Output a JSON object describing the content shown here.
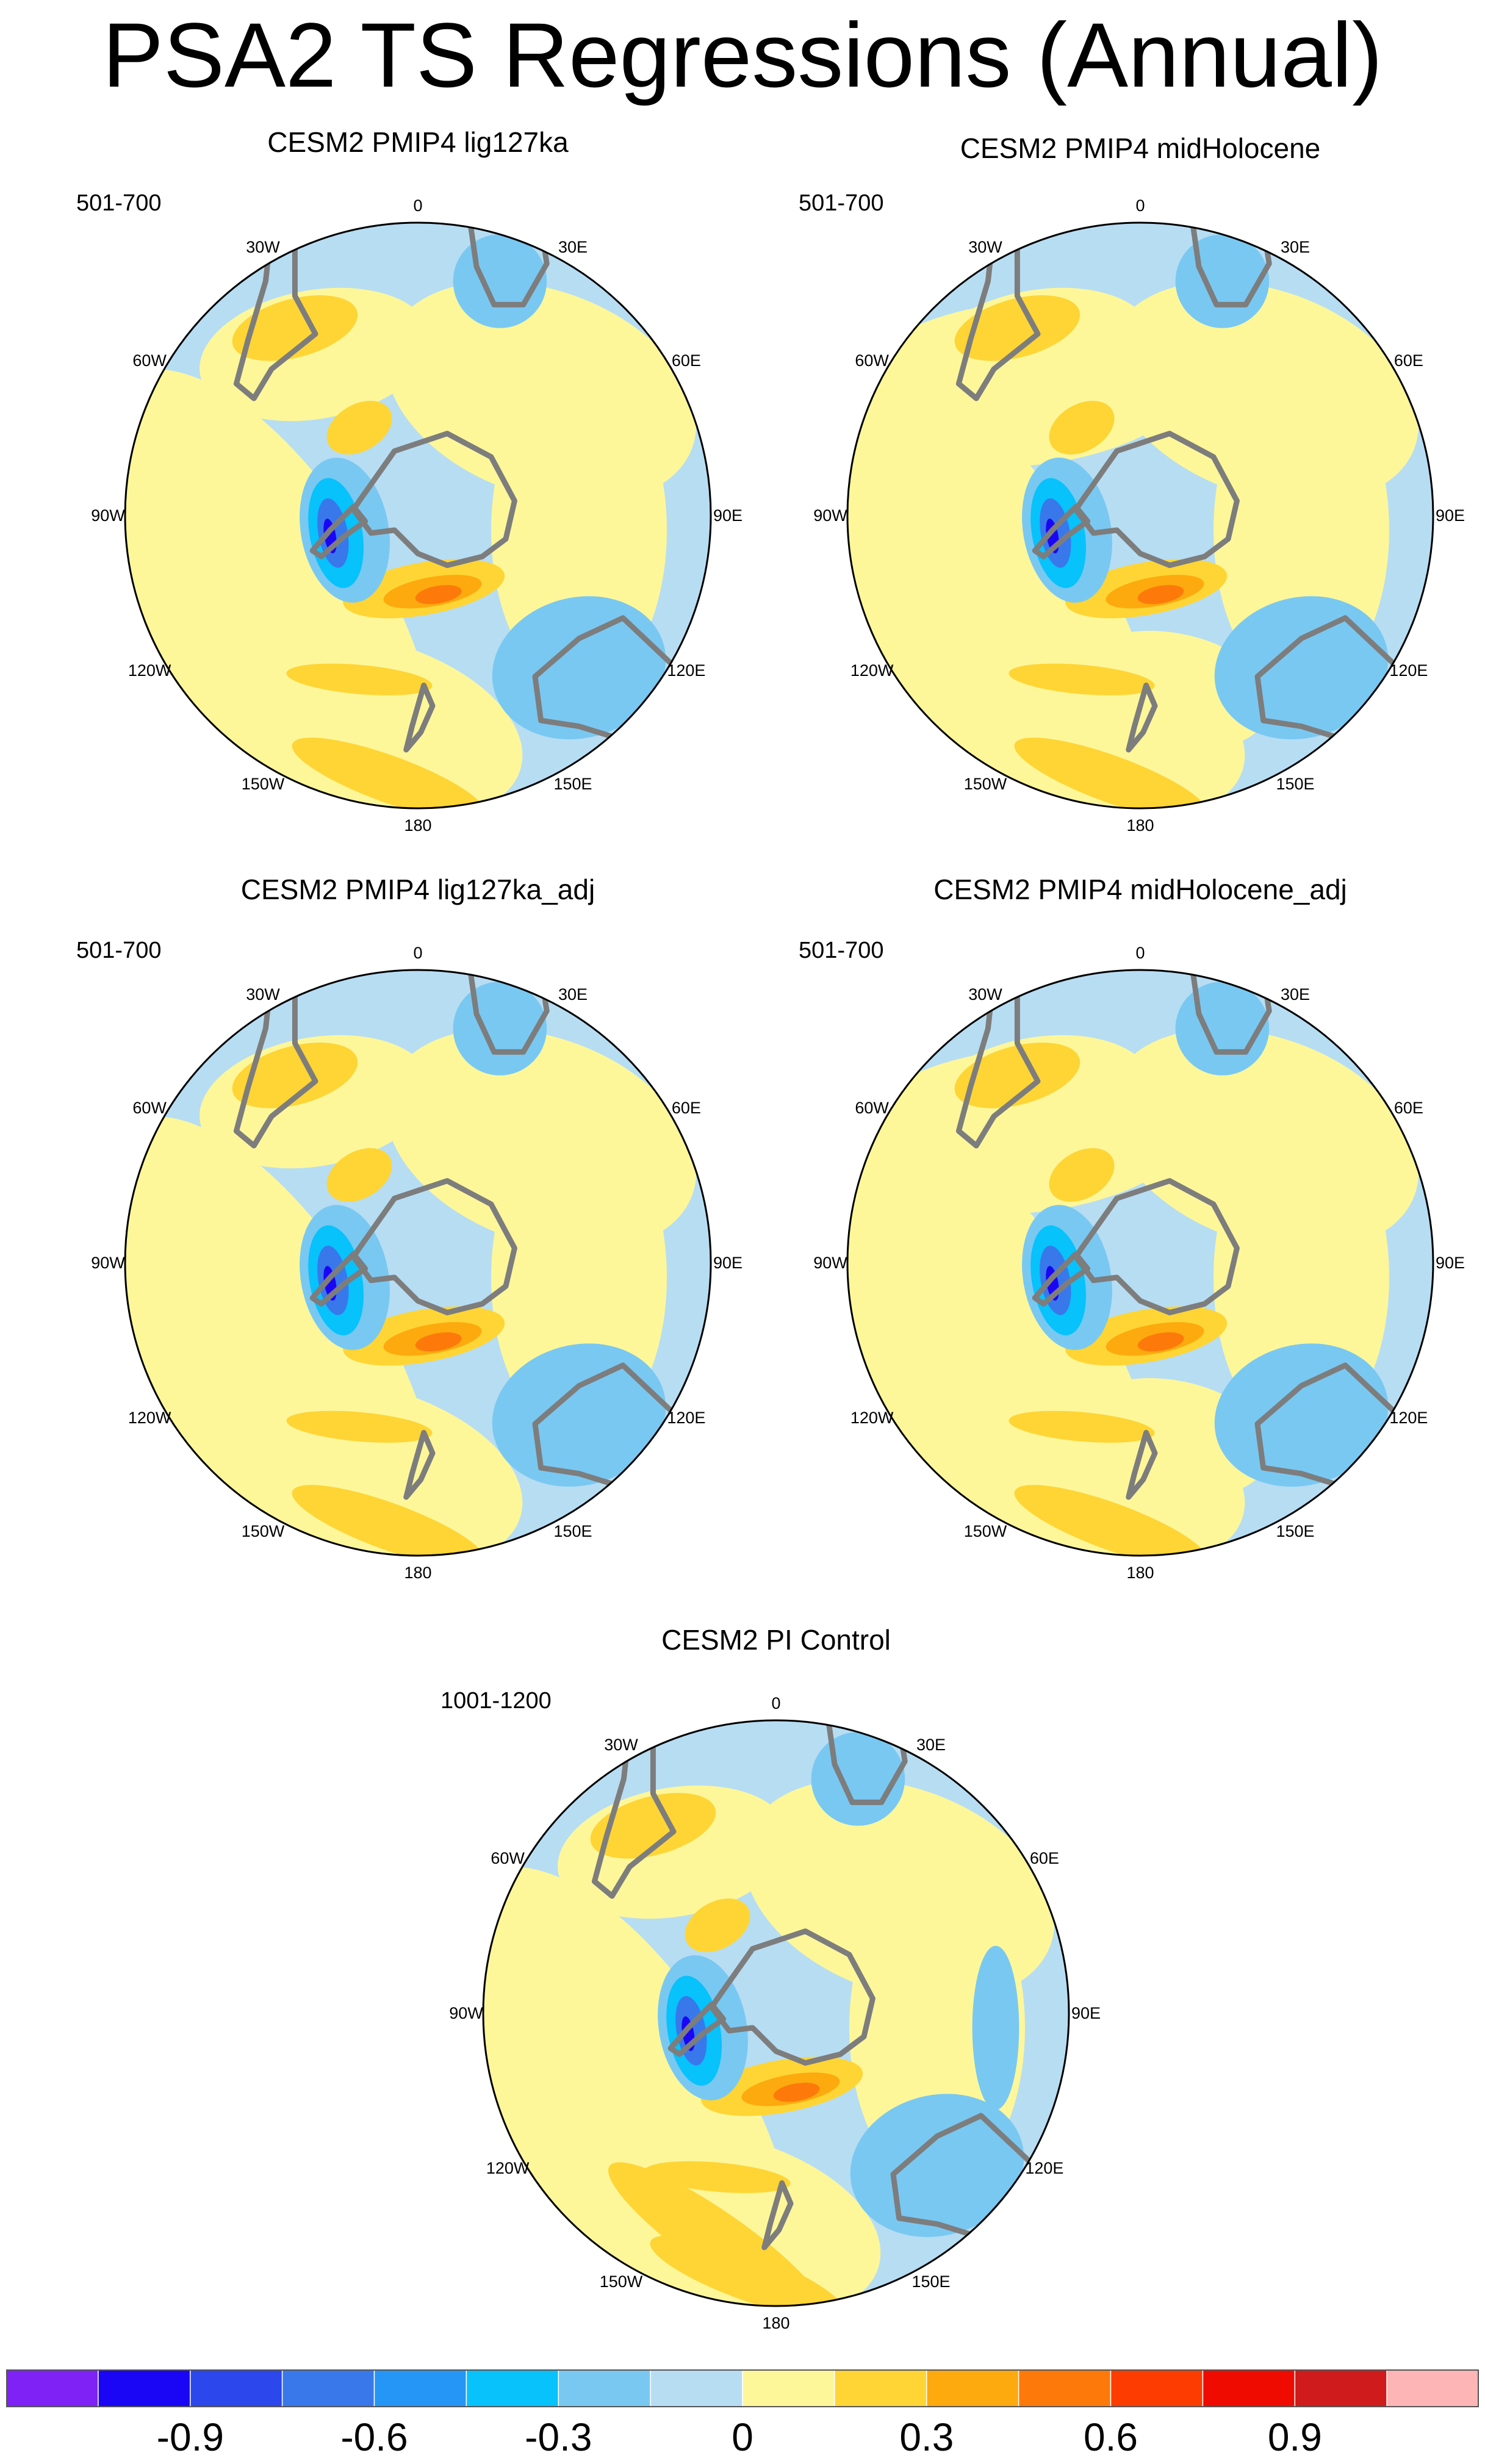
{
  "figure": {
    "title": "PSA2 TS Regressions (Annual)"
  },
  "panels": [
    {
      "id": "lig127ka",
      "title": "CESM2 PMIP4 lig127ka",
      "period": "501-700",
      "variant": "a"
    },
    {
      "id": "midHolocene",
      "title": "CESM2 PMIP4 midHolocene",
      "period": "501-700",
      "variant": "b"
    },
    {
      "id": "lig127ka_adj",
      "title": "CESM2 PMIP4 lig127ka_adj",
      "period": "501-700",
      "variant": "a"
    },
    {
      "id": "midHolocene_adj",
      "title": "CESM2 PMIP4 midHolocene_adj",
      "period": "501-700",
      "variant": "b"
    },
    {
      "id": "picontrol",
      "title": "CESM2 PI Control",
      "period": "1001-1200",
      "variant": "c"
    }
  ],
  "longitude_labels": [
    "0",
    "30E",
    "60E",
    "90E",
    "120E",
    "150E",
    "180",
    "150W",
    "120W",
    "90W",
    "60W",
    "30W"
  ],
  "colors": {
    "coastline": "#7d7d7d",
    "land_void": "#ffffff",
    "background_ocean": "#b7ddf3"
  },
  "colorbar": {
    "colors": [
      "#7f22f5",
      "#1a06f5",
      "#2c47eb",
      "#3878ea",
      "#2596f5",
      "#07c2fb",
      "#79c8f2",
      "#b7ddf3",
      "#fdf79a",
      "#fed535",
      "#fdaa0e",
      "#fd7a0a",
      "#fc3c00",
      "#ef0b00",
      "#d01b1c",
      "#fdb5b5"
    ],
    "labels": [
      "-0.9",
      "-0.6",
      "-0.3",
      "0",
      "0.3",
      "0.6",
      "0.9"
    ],
    "label_boundary_index": [
      2,
      4,
      6,
      8,
      10,
      12,
      14
    ]
  }
}
